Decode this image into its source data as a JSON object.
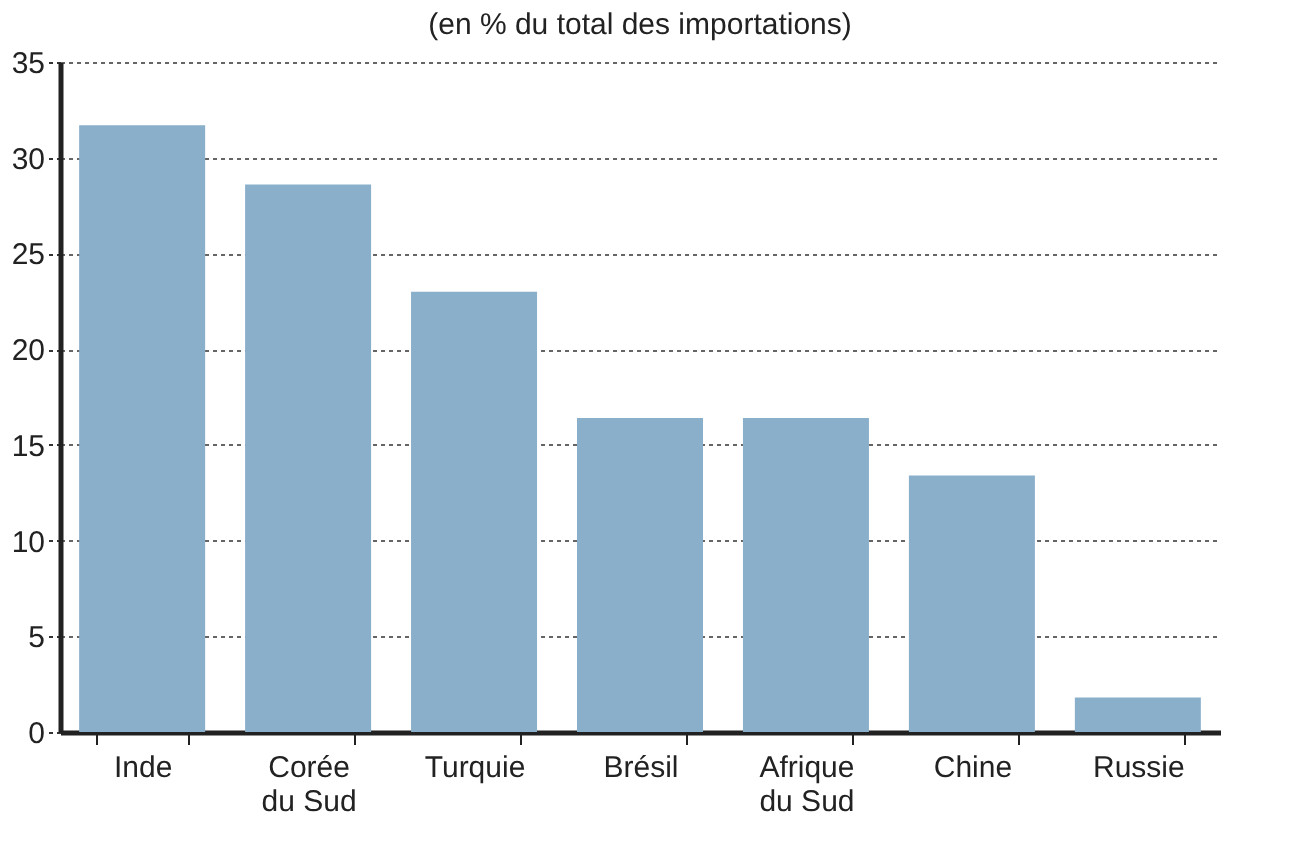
{
  "chart_data": {
    "type": "bar",
    "title": "(en % du total des importations)",
    "categories": [
      "Inde",
      "Corée du Sud",
      "Turquie",
      "Brésil",
      "Afrique du Sud",
      "Chine",
      "Russie"
    ],
    "values": [
      31.7,
      28.6,
      23.0,
      16.4,
      16.4,
      13.4,
      1.8
    ],
    "color": "#8aafca",
    "ylim": [
      0,
      35
    ],
    "yticks": [
      0,
      5,
      10,
      15,
      20,
      25,
      30,
      35
    ],
    "grid": "y"
  }
}
